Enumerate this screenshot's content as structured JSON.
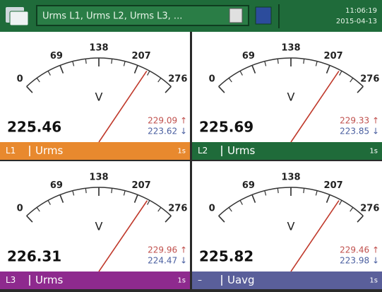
{
  "header": {
    "title": "Urms L1, Urms L2, Urms L3, ...",
    "time": "11:06:19",
    "date": "2015-04-13"
  },
  "panels": [
    {
      "scale": [
        0,
        69,
        138,
        207,
        276
      ],
      "unit": "V",
      "value": 225.46,
      "max": "229.09 ↑",
      "min": "223.62 ↓",
      "phase": "L1",
      "quantity": "Urms",
      "interval": "1s",
      "color": "#e8892e"
    },
    {
      "scale": [
        0,
        69,
        138,
        207,
        276
      ],
      "unit": "V",
      "value": 225.69,
      "max": "229.33 ↑",
      "min": "223.85 ↓",
      "phase": "L2",
      "quantity": "Urms",
      "interval": "1s",
      "color": "#1f6b3a"
    },
    {
      "scale": [
        0,
        69,
        138,
        207,
        276
      ],
      "unit": "V",
      "value": 226.31,
      "max": "229.96 ↑",
      "min": "224.47 ↓",
      "phase": "L3",
      "quantity": "Urms",
      "interval": "1s",
      "color": "#8e2a8e"
    },
    {
      "scale": [
        0,
        69,
        138,
        207,
        276
      ],
      "unit": "V",
      "value": 225.82,
      "max": "229.46 ↑",
      "min": "223.98 ↓",
      "phase": "–",
      "quantity": "Uavg",
      "interval": "1s",
      "color": "#5a5f9a"
    }
  ]
}
